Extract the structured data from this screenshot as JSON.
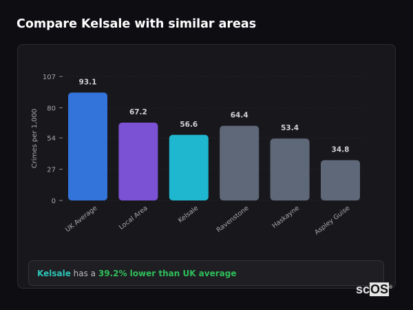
{
  "header": {
    "title": "Compare Kelsale with similar areas"
  },
  "chart_data": {
    "type": "bar",
    "categories": [
      "UK Average",
      "Local Area",
      "Kelsale",
      "Ravenstone",
      "Haskayne",
      "Aspley Guise"
    ],
    "values": [
      93.1,
      67.2,
      56.6,
      64.4,
      53.4,
      34.8
    ],
    "colors": [
      "#3374db",
      "#7c52d4",
      "#1fb6cf",
      "#5e6878",
      "#5e6878",
      "#5e6878"
    ],
    "ylabel": "Crimes per 1,000",
    "ylim": [
      0,
      107
    ],
    "yticks": [
      0,
      27,
      54,
      80,
      107
    ],
    "grid": true,
    "legend": "none"
  },
  "summary": {
    "area": "Kelsale",
    "middle": " has a ",
    "highlight": "39.2% lower than UK average"
  },
  "logo": {
    "text_sc": "sc",
    "text_os": "OS",
    "mark": "®"
  },
  "colors": {
    "area": "#2ec4b6",
    "highlight": "#2fbf5a"
  }
}
